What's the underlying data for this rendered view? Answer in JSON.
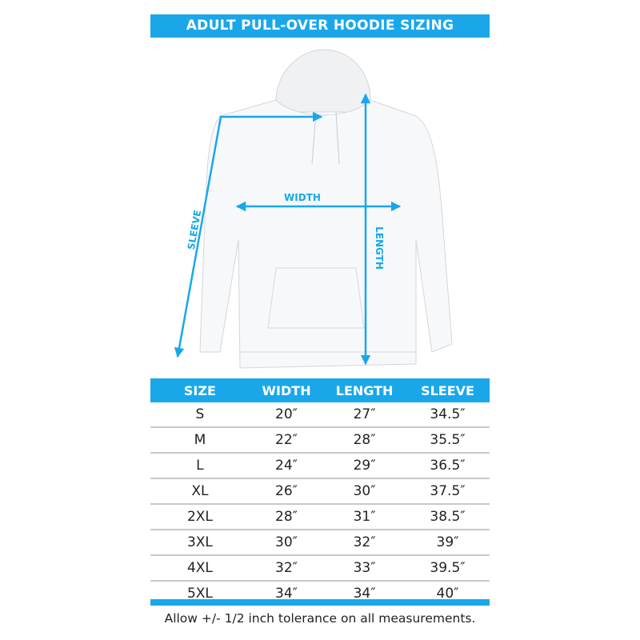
{
  "title": "ADULT PULL-OVER HOODIE SIZING",
  "diagram": {
    "labels": {
      "width": "WIDTH",
      "length": "LENGTH",
      "sleeve": "SLEEVE"
    },
    "accent_color": "#1aa7ea"
  },
  "table": {
    "headers": [
      "SIZE",
      "WIDTH",
      "LENGTH",
      "SLEEVE"
    ],
    "rows": [
      [
        "S",
        "20″",
        "27″",
        "34.5″"
      ],
      [
        "M",
        "22″",
        "28″",
        "35.5″"
      ],
      [
        "L",
        "24″",
        "29″",
        "36.5″"
      ],
      [
        "XL",
        "26″",
        "30″",
        "37.5″"
      ],
      [
        "2XL",
        "28″",
        "31″",
        "38.5″"
      ],
      [
        "3XL",
        "30″",
        "32″",
        "39″"
      ],
      [
        "4XL",
        "32″",
        "33″",
        "39.5″"
      ],
      [
        "5XL",
        "34″",
        "34″",
        "40″"
      ]
    ]
  },
  "note": "Allow +/- 1/2 inch tolerance on all measurements."
}
